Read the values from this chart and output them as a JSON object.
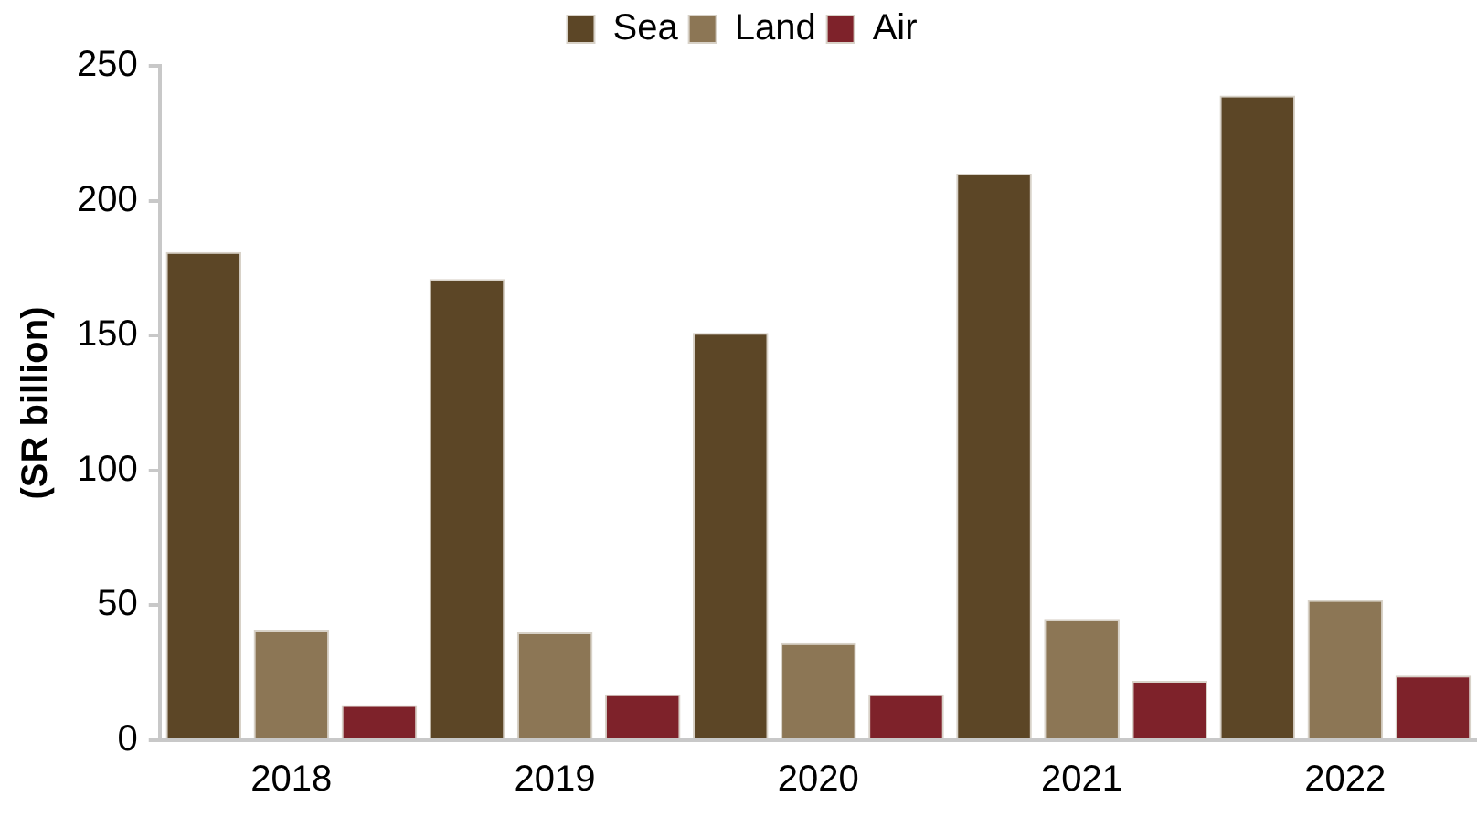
{
  "chart_data": {
    "type": "bar",
    "ylabel": "(SR billion)",
    "categories": [
      "2018",
      "2019",
      "2020",
      "2021",
      "2022"
    ],
    "series": [
      {
        "name": "Sea",
        "color": "#5c4626",
        "values": [
          181,
          171,
          151,
          210,
          239
        ]
      },
      {
        "name": "Land",
        "color": "#8c7655",
        "values": [
          41,
          40,
          36,
          45,
          52
        ]
      },
      {
        "name": "Air",
        "color": "#7e222a",
        "values": [
          13,
          17,
          17,
          22,
          24
        ]
      }
    ],
    "ylim": [
      0,
      250
    ],
    "yticks": [
      0,
      50,
      100,
      150,
      200,
      250
    ],
    "grid": false,
    "legend": "top"
  }
}
